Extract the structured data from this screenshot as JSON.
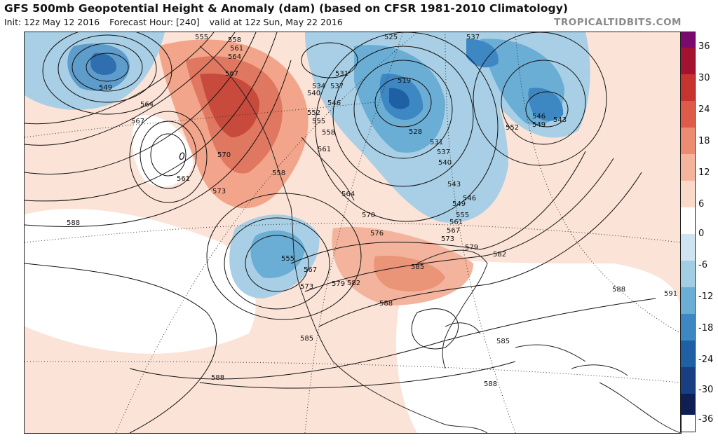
{
  "header": {
    "title": "GFS 500mb Geopotential Height & Anomaly (dam) (based on CFSR 1981-2010 Climatology)",
    "init": "Init: 12z May 12 2016",
    "forecast_hour": "Forecast Hour: [240]",
    "valid": "valid at 12z Sun, May 22 2016",
    "credit": "TROPICALTIDBITS.COM"
  },
  "colorbar": {
    "ticks": [
      "36",
      "30",
      "24",
      "18",
      "12",
      "6",
      "0",
      "-6",
      "-12",
      "-18",
      "-24",
      "-30",
      "-36"
    ],
    "colors_top_to_bottom": [
      "#7b0a6f",
      "#a3122f",
      "#c7342f",
      "#de5b4a",
      "#ec8a72",
      "#f5b49c",
      "#fbd9c8",
      "#ffffff",
      "#cfe4f0",
      "#a3cde3",
      "#6aaed5",
      "#3d87c2",
      "#1f5fa3",
      "#173f82",
      "#0e1f55"
    ]
  },
  "contour_labels": [
    "555",
    "558",
    "561",
    "564",
    "567",
    "549",
    "564",
    "567",
    "570",
    "573",
    "561",
    "588",
    "558",
    "525",
    "531",
    "534",
    "537",
    "540",
    "546",
    "552",
    "555",
    "558",
    "561",
    "564",
    "519",
    "528",
    "531",
    "537",
    "540",
    "543",
    "546",
    "549",
    "555",
    "561",
    "567",
    "573",
    "537",
    "546",
    "549",
    "543",
    "552",
    "570",
    "576",
    "579",
    "582",
    "585",
    "588",
    "579",
    "582",
    "573",
    "567",
    "555",
    "585",
    "588",
    "588",
    "588",
    "585",
    "591"
  ],
  "map_features": {
    "low_centers": [
      "L-north-pacific",
      "L-offshore-pacific",
      "L-west-coast",
      "L-hudson",
      "L-greenland"
    ],
    "highs": [
      "ridge-alaska",
      "ridge-central-us"
    ]
  }
}
